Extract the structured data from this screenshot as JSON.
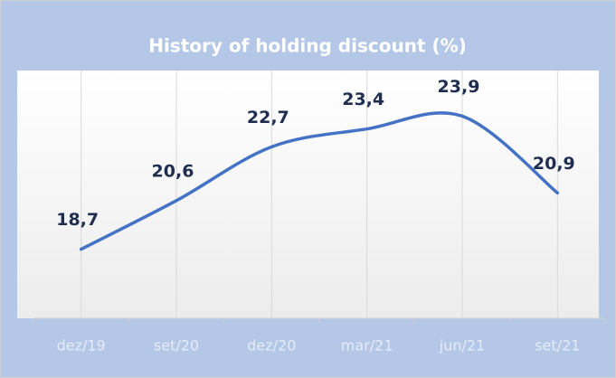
{
  "chart_data": {
    "type": "line",
    "title": "History of holding discount (%)",
    "categories": [
      "dez/19",
      "set/20",
      "dez/20",
      "mar/21",
      "jun/21",
      "set/21"
    ],
    "series": [
      {
        "name": "Holding discount",
        "color": "#4472c4",
        "values": [
          18.7,
          20.6,
          22.7,
          23.4,
          23.9,
          20.9
        ],
        "value_labels": [
          "18,7",
          "20,6",
          "22,7",
          "23,4",
          "23,9",
          "20,9"
        ]
      }
    ],
    "ylim": [
      16,
      26
    ],
    "grid": true
  }
}
